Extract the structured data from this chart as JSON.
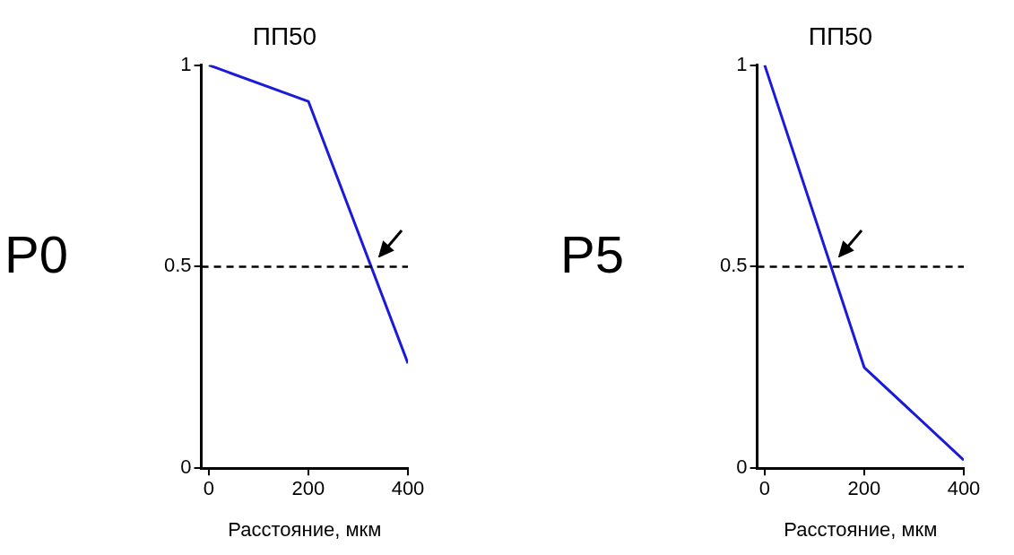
{
  "chart_data": [
    {
      "type": "line",
      "title": "ПП50",
      "xlabel": "Расстояние, мкм",
      "x": [
        0,
        200,
        400
      ],
      "series": [
        {
          "color": "#1a1adc",
          "values": [
            1,
            0.91,
            0.26
          ]
        }
      ],
      "xlim": [
        -15,
        400
      ],
      "ylim": [
        0,
        1
      ],
      "xticks": [
        0,
        200,
        400
      ],
      "yticks": [
        0,
        0.5,
        1
      ],
      "ref_lines": [
        {
          "axis": "y",
          "value": 0.5,
          "color": "#000000",
          "line_style": "dashed"
        }
      ],
      "annotations": [
        "P0"
      ],
      "marker": "none",
      "line_style": "solid",
      "grid": false,
      "legend": false
    },
    {
      "type": "line",
      "title": "ПП50",
      "xlabel": "Расстояние, мкм",
      "x": [
        0,
        200,
        400
      ],
      "series": [
        {
          "color": "#1a1adc",
          "values": [
            1,
            0.25,
            0.02
          ]
        }
      ],
      "xlim": [
        -15,
        400
      ],
      "ylim": [
        0,
        1
      ],
      "xticks": [
        0,
        200,
        400
      ],
      "yticks": [
        0,
        0.5,
        1
      ],
      "ref_lines": [
        {
          "axis": "y",
          "value": 0.5,
          "color": "#000000",
          "line_style": "dashed"
        }
      ],
      "annotations": [
        "P5"
      ],
      "marker": "none",
      "line_style": "solid",
      "grid": false,
      "legend": false
    }
  ]
}
